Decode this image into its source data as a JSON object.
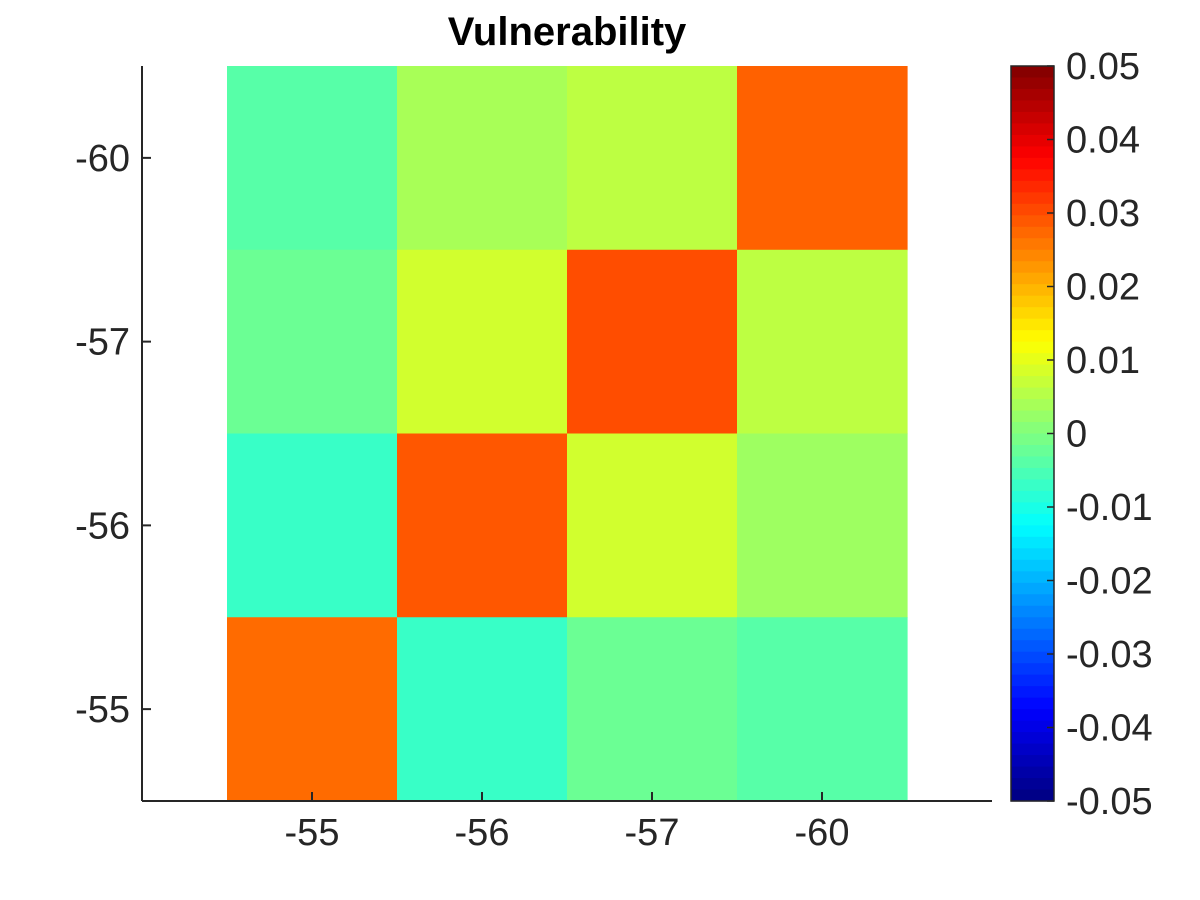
{
  "chart_data": {
    "type": "heatmap",
    "title": "Vulnerability",
    "x_categories": [
      "-55",
      "-56",
      "-57",
      "-60"
    ],
    "y_categories": [
      "-60",
      "-57",
      "-56",
      "-55"
    ],
    "values": [
      [
        -0.004,
        0.004,
        0.006,
        0.028
      ],
      [
        -0.002,
        0.008,
        0.03,
        0.006
      ],
      [
        -0.007,
        0.029,
        0.008,
        0.003
      ],
      [
        0.027,
        -0.007,
        -0.002,
        -0.004
      ]
    ],
    "colorbar": {
      "colormap": "jet",
      "range": [
        -0.05,
        0.05
      ],
      "ticks": [
        "0.05",
        "0.04",
        "0.03",
        "0.02",
        "0.01",
        "0",
        "-0.01",
        "-0.02",
        "-0.03",
        "-0.04",
        "-0.05"
      ]
    },
    "xlabel": "",
    "ylabel": "",
    "grid": false
  }
}
